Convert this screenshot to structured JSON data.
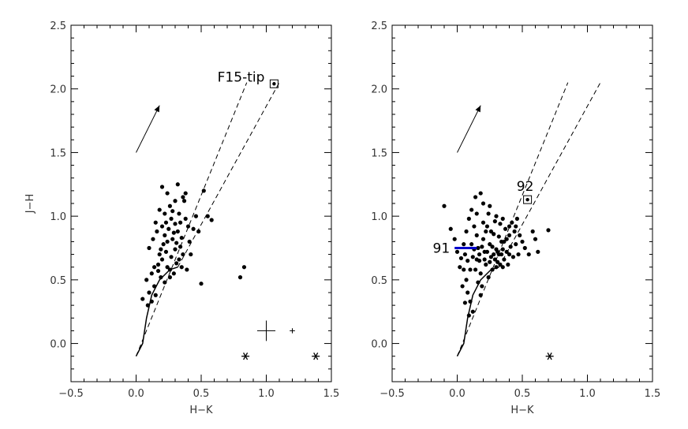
{
  "chart_data": [
    {
      "type": "scatter",
      "title": "",
      "xlabel": "H−K",
      "ylabel": "J−H",
      "xlim": [
        -0.5,
        1.5
      ],
      "ylim": [
        -0.3,
        2.5
      ],
      "xticks": [
        "−0.5",
        "0.0",
        "0.5",
        "1.0",
        "1.5"
      ],
      "yticks": [
        "0.0",
        "0.5",
        "1.0",
        "1.5",
        "2.0",
        "2.5"
      ],
      "grid": false,
      "points": [
        [
          0.05,
          0.35
        ],
        [
          0.09,
          0.3
        ],
        [
          0.1,
          0.4
        ],
        [
          0.12,
          0.33
        ],
        [
          0.15,
          0.38
        ],
        [
          0.08,
          0.5
        ],
        [
          0.12,
          0.55
        ],
        [
          0.14,
          0.6
        ],
        [
          0.1,
          0.75
        ],
        [
          0.13,
          0.82
        ],
        [
          0.15,
          0.95
        ],
        [
          0.17,
          0.62
        ],
        [
          0.18,
          0.7
        ],
        [
          0.19,
          0.52
        ],
        [
          0.2,
          0.66
        ],
        [
          0.21,
          0.78
        ],
        [
          0.22,
          0.85
        ],
        [
          0.23,
          0.72
        ],
        [
          0.24,
          0.6
        ],
        [
          0.25,
          0.9
        ],
        [
          0.18,
          1.05
        ],
        [
          0.2,
          1.23
        ],
        [
          0.24,
          1.18
        ],
        [
          0.26,
          1.08
        ],
        [
          0.27,
          0.98
        ],
        [
          0.28,
          0.82
        ],
        [
          0.3,
          0.74
        ],
        [
          0.31,
          0.63
        ],
        [
          0.29,
          0.55
        ],
        [
          0.32,
          0.88
        ],
        [
          0.33,
          1.02
        ],
        [
          0.34,
          0.95
        ],
        [
          0.35,
          0.83
        ],
        [
          0.36,
          0.7
        ],
        [
          0.37,
          1.12
        ],
        [
          0.38,
          0.98
        ],
        [
          0.39,
          0.58
        ],
        [
          0.4,
          0.92
        ],
        [
          0.32,
          1.25
        ],
        [
          0.36,
          1.15
        ],
        [
          0.16,
          0.88
        ],
        [
          0.22,
          0.48
        ],
        [
          0.26,
          0.58
        ],
        [
          0.28,
          1.04
        ],
        [
          0.3,
          0.94
        ],
        [
          0.34,
          0.76
        ],
        [
          0.41,
          0.8
        ],
        [
          0.44,
          0.9
        ],
        [
          0.46,
          1.0
        ],
        [
          0.48,
          0.88
        ],
        [
          0.5,
          0.47
        ],
        [
          0.52,
          1.2
        ],
        [
          0.55,
          1.0
        ],
        [
          0.58,
          0.97
        ],
        [
          0.38,
          1.18
        ],
        [
          0.42,
          0.7
        ],
        [
          0.2,
          0.92
        ],
        [
          0.24,
          0.8
        ],
        [
          0.27,
          0.68
        ],
        [
          0.3,
          1.12
        ],
        [
          0.19,
          0.74
        ],
        [
          0.23,
          0.95
        ],
        [
          0.33,
          0.66
        ],
        [
          0.26,
          0.52
        ],
        [
          0.14,
          0.45
        ],
        [
          0.17,
          0.57
        ],
        [
          0.22,
          1.02
        ],
        [
          0.35,
          0.6
        ],
        [
          0.29,
          0.87
        ],
        [
          0.31,
          0.79
        ],
        [
          0.83,
          0.6
        ],
        [
          0.8,
          0.52
        ]
      ],
      "highlighted_point": {
        "x": 1.06,
        "y": 2.04,
        "label": "F15-tip"
      },
      "intrinsic_locus": [
        [
          0.0,
          -0.1
        ],
        [
          0.05,
          0.0
        ],
        [
          0.08,
          0.2
        ],
        [
          0.12,
          0.38
        ],
        [
          0.18,
          0.5
        ],
        [
          0.26,
          0.58
        ],
        [
          0.32,
          0.6
        ]
      ],
      "reddening_band": [
        {
          "start": [
            0.0,
            -0.1
          ],
          "end": [
            0.85,
            2.05
          ]
        },
        {
          "start": [
            0.32,
            0.6
          ],
          "end": [
            1.1,
            2.05
          ]
        }
      ],
      "reddening_vector": {
        "start": [
          0.0,
          1.5
        ],
        "end": [
          0.18,
          1.87
        ]
      },
      "error_bars": [
        {
          "x": 1.0,
          "y": 0.1,
          "dx": 0.07,
          "dy": 0.08
        },
        {
          "x": 1.2,
          "y": 0.1,
          "dx": 0.02,
          "dy": 0.02
        }
      ],
      "star_markers": [
        [
          0.84,
          -0.1
        ],
        [
          1.38,
          -0.1
        ]
      ]
    },
    {
      "type": "scatter",
      "title": "",
      "xlabel": "H−K",
      "ylabel": "",
      "xlim": [
        -0.5,
        1.5
      ],
      "ylim": [
        -0.3,
        2.5
      ],
      "xticks": [
        "−0.5",
        "0.0",
        "0.5",
        "1.0",
        "1.5"
      ],
      "yticks": [
        "0.0",
        "0.5",
        "1.0",
        "1.5",
        "2.0",
        "2.5"
      ],
      "grid": false,
      "points": [
        [
          -0.05,
          0.9
        ],
        [
          -0.02,
          0.82
        ],
        [
          -0.1,
          1.08
        ],
        [
          0.0,
          0.72
        ],
        [
          0.03,
          0.67
        ],
        [
          0.05,
          0.58
        ],
        [
          0.07,
          0.5
        ],
        [
          0.08,
          0.4
        ],
        [
          0.1,
          0.33
        ],
        [
          0.12,
          0.25
        ],
        [
          0.09,
          0.22
        ],
        [
          0.06,
          0.32
        ],
        [
          0.04,
          0.45
        ],
        [
          0.02,
          0.6
        ],
        [
          0.05,
          0.78
        ],
        [
          0.07,
          0.88
        ],
        [
          0.09,
          0.98
        ],
        [
          0.11,
          1.05
        ],
        [
          0.14,
          1.15
        ],
        [
          0.18,
          1.18
        ],
        [
          0.13,
          0.92
        ],
        [
          0.15,
          0.85
        ],
        [
          0.16,
          0.75
        ],
        [
          0.17,
          0.65
        ],
        [
          0.18,
          0.55
        ],
        [
          0.19,
          0.45
        ],
        [
          0.2,
          0.82
        ],
        [
          0.21,
          0.72
        ],
        [
          0.22,
          0.62
        ],
        [
          0.23,
          0.92
        ],
        [
          0.24,
          1.02
        ],
        [
          0.25,
          0.78
        ],
        [
          0.26,
          0.68
        ],
        [
          0.27,
          0.58
        ],
        [
          0.28,
          0.86
        ],
        [
          0.29,
          0.96
        ],
        [
          0.3,
          0.74
        ],
        [
          0.31,
          0.64
        ],
        [
          0.32,
          0.84
        ],
        [
          0.33,
          0.94
        ],
        [
          0.34,
          0.7
        ],
        [
          0.35,
          0.6
        ],
        [
          0.36,
          0.8
        ],
        [
          0.37,
          0.9
        ],
        [
          0.38,
          0.72
        ],
        [
          0.39,
          0.62
        ],
        [
          0.4,
          0.85
        ],
        [
          0.41,
          0.76
        ],
        [
          0.42,
          0.95
        ],
        [
          0.43,
          0.68
        ],
        [
          0.44,
          0.88
        ],
        [
          0.45,
          0.78
        ],
        [
          0.46,
          0.98
        ],
        [
          0.47,
          0.7
        ],
        [
          0.48,
          0.85
        ],
        [
          0.5,
          0.8
        ],
        [
          0.52,
          0.75
        ],
        [
          0.55,
          0.7
        ],
        [
          0.58,
          0.88
        ],
        [
          0.6,
          0.82
        ],
        [
          0.62,
          0.72
        ],
        [
          0.7,
          0.89
        ],
        [
          0.12,
          0.68
        ],
        [
          0.14,
          0.58
        ],
        [
          0.16,
          0.48
        ],
        [
          0.18,
          0.38
        ],
        [
          0.2,
          0.95
        ],
        [
          0.22,
          0.88
        ],
        [
          0.24,
          0.52
        ],
        [
          0.26,
          0.88
        ],
        [
          0.28,
          0.7
        ],
        [
          0.3,
          0.6
        ],
        [
          0.32,
          0.7
        ],
        [
          0.34,
          0.8
        ],
        [
          0.36,
          0.66
        ],
        [
          0.38,
          0.82
        ],
        [
          0.4,
          0.7
        ],
        [
          0.11,
          0.78
        ],
        [
          0.13,
          0.74
        ],
        [
          0.15,
          0.66
        ],
        [
          0.17,
          0.7
        ],
        [
          0.19,
          0.76
        ],
        [
          0.21,
          0.66
        ],
        [
          0.23,
          0.72
        ],
        [
          0.25,
          0.64
        ],
        [
          0.27,
          0.76
        ],
        [
          0.29,
          0.66
        ],
        [
          0.31,
          0.72
        ],
        [
          0.33,
          0.62
        ],
        [
          0.35,
          0.74
        ],
        [
          0.1,
          0.58
        ],
        [
          0.08,
          0.65
        ],
        [
          0.06,
          0.7
        ],
        [
          0.2,
          1.1
        ],
        [
          0.25,
          1.08
        ],
        [
          0.3,
          1.0
        ],
        [
          0.15,
          1.02
        ],
        [
          0.35,
          0.98
        ],
        [
          0.4,
          0.92
        ],
        [
          0.45,
          0.92
        ]
      ],
      "highlighted_point": {
        "x": 0.54,
        "y": 1.13,
        "label": "92"
      },
      "labeled_segment": {
        "start": [
          -0.02,
          0.75
        ],
        "end": [
          0.15,
          0.75
        ],
        "label": "91",
        "color": "#0000cc"
      },
      "intrinsic_locus": [
        [
          0.0,
          -0.1
        ],
        [
          0.05,
          0.0
        ],
        [
          0.08,
          0.2
        ],
        [
          0.12,
          0.38
        ],
        [
          0.18,
          0.5
        ],
        [
          0.26,
          0.58
        ],
        [
          0.32,
          0.6
        ]
      ],
      "reddening_band": [
        {
          "start": [
            0.0,
            -0.1
          ],
          "end": [
            0.85,
            2.05
          ]
        },
        {
          "start": [
            0.32,
            0.6
          ],
          "end": [
            1.1,
            2.05
          ]
        }
      ],
      "reddening_vector": {
        "start": [
          0.0,
          1.5
        ],
        "end": [
          0.18,
          1.87
        ]
      },
      "star_markers": [
        [
          0.71,
          -0.1
        ]
      ]
    }
  ]
}
